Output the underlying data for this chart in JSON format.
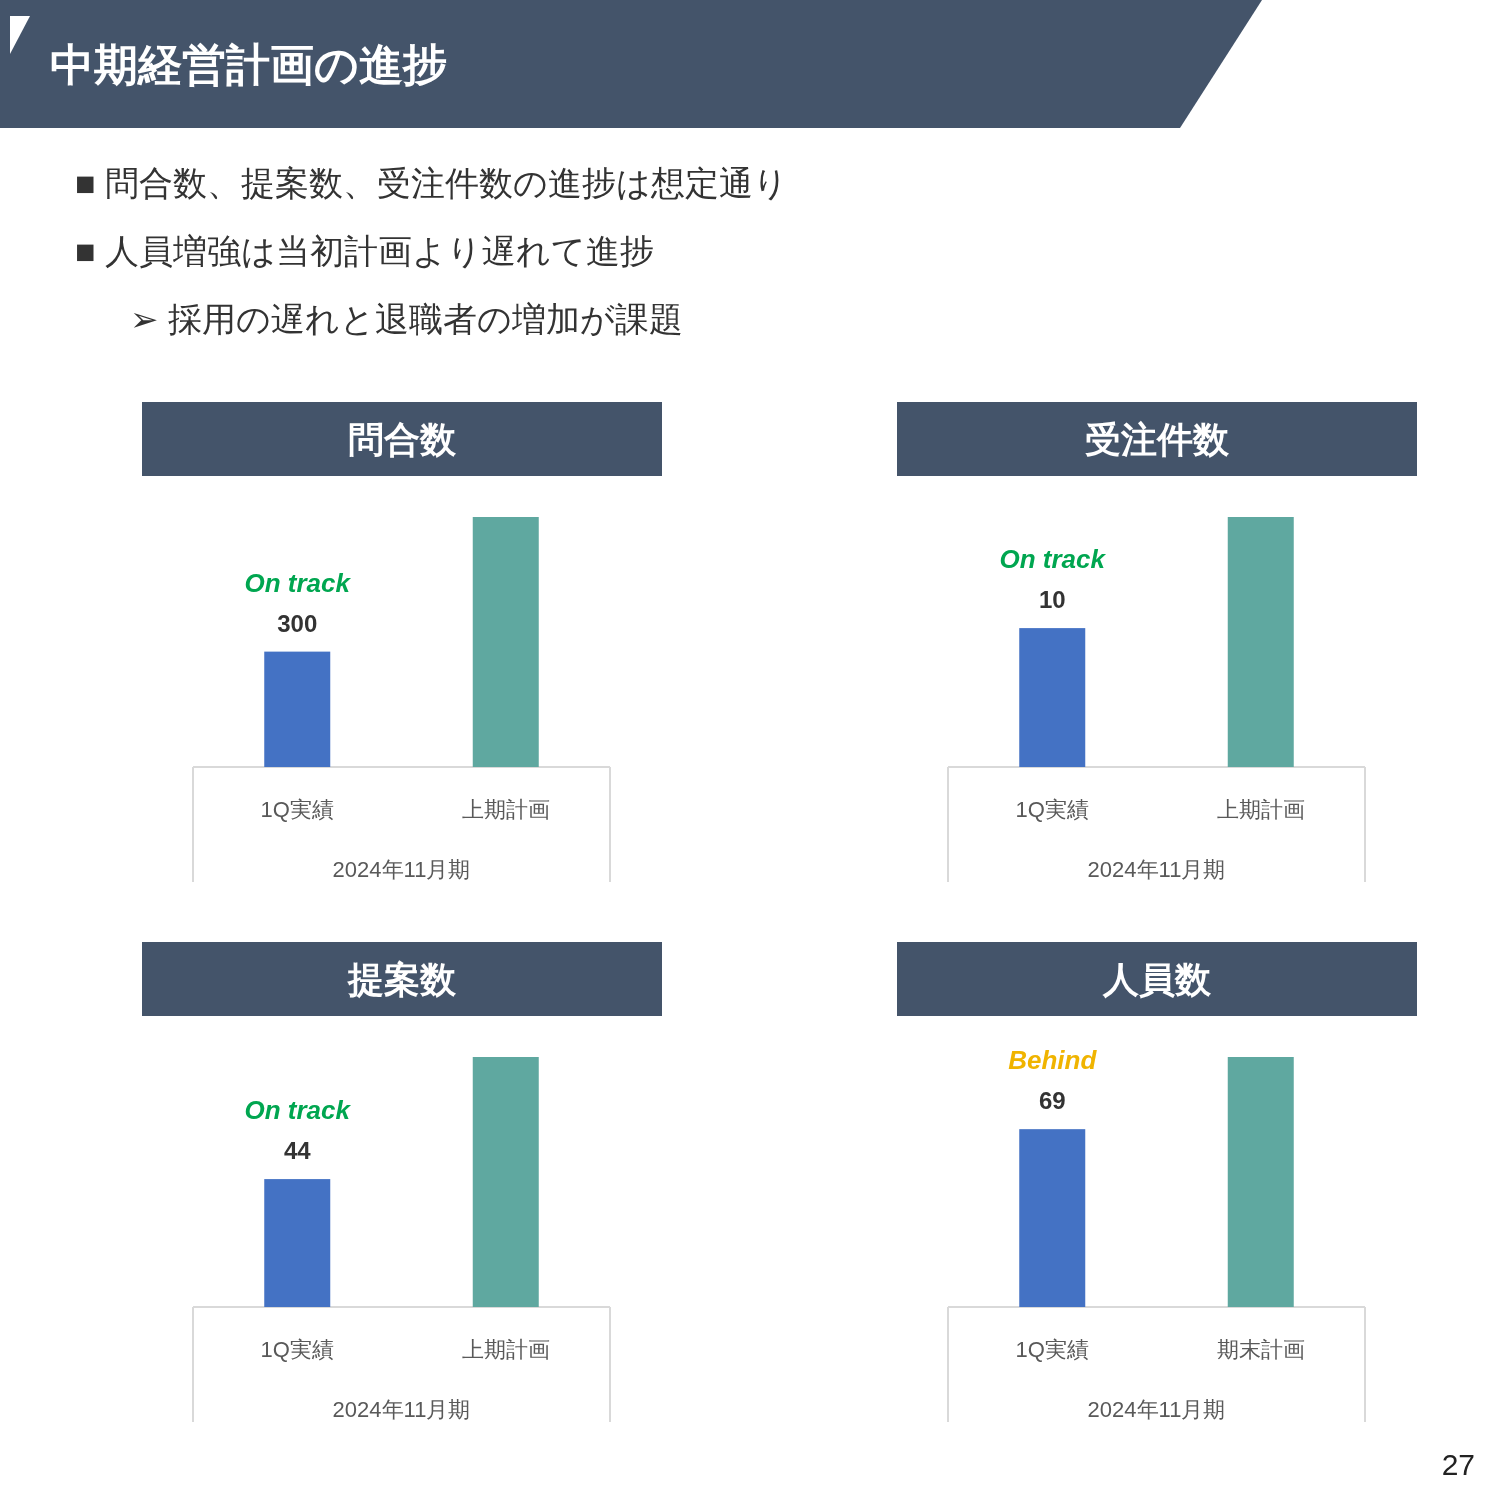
{
  "chart_data": [
    {
      "type": "other",
      "title": "中期経営計画の進捗",
      "annotations": [
        "■ 問合数、提案数、受注件数の進捗は想定通り",
        "■ 人員増強は当初計画より遅れて進捗",
        "➢ 採用の遅れと退職者の増加が課題",
        "27"
      ]
    },
    {
      "type": "bar",
      "title": "問合数",
      "categories": [
        "1Q実績",
        "上期計画"
      ],
      "xlabel": "2024年11月期",
      "values": [
        300,
        650
      ],
      "colors": [
        "#4472c4",
        "#5fa8a0"
      ],
      "value_labels": [
        "300",
        null
      ],
      "annotations": [
        "On track"
      ]
    },
    {
      "type": "bar",
      "title": "受注件数",
      "categories": [
        "1Q実績",
        "上期計画"
      ],
      "xlabel": "2024年11月期",
      "values": [
        10,
        18
      ],
      "colors": [
        "#4472c4",
        "#5fa8a0"
      ],
      "value_labels": [
        "10",
        null
      ],
      "annotations": [
        "On track"
      ]
    },
    {
      "type": "bar",
      "title": "提案数",
      "categories": [
        "1Q実績",
        "上期計画"
      ],
      "xlabel": "2024年11月期",
      "values": [
        44,
        86
      ],
      "colors": [
        "#4472c4",
        "#5fa8a0"
      ],
      "value_labels": [
        "44",
        null
      ],
      "annotations": [
        "On track"
      ]
    },
    {
      "type": "bar",
      "title": "人員数",
      "categories": [
        "1Q実績",
        "期末計画"
      ],
      "xlabel": "2024年11月期",
      "values": [
        69,
        97
      ],
      "colors": [
        "#4472c4",
        "#5fa8a0"
      ],
      "value_labels": [
        "69",
        null
      ],
      "annotations": [
        "Behind"
      ]
    }
  ]
}
